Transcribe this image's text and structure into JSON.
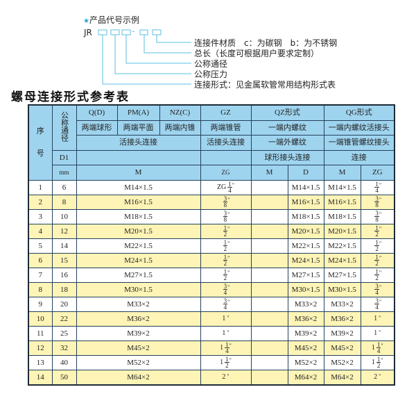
{
  "example": {
    "star_icon": "star-icon",
    "heading": "产品代号示例",
    "prefix": "JR",
    "dash": "-",
    "labels": [
      "连接件材质　c：为碳钢　b：为不锈钢",
      "总长（长度可根据用户要求定制）",
      "公称通径",
      "公称压力",
      "连接形式：见金属软管常用结构形式表"
    ],
    "line_color": "#5bbfe0"
  },
  "title": "螺母连接形式参考表",
  "colors": {
    "header": "#9fd4ef",
    "row_alt": "#fdf4b6",
    "border": "#24415c"
  },
  "header": {
    "seq_a": "序",
    "seq_b": "号",
    "dn": "公称通径",
    "r1": [
      "Q(D)",
      "PM(A)",
      "NZ(C)",
      "GZ",
      "QZ形式",
      "QG形式"
    ],
    "r2": [
      "两端球形",
      "两端平面",
      "两端内锥",
      "两端锥管",
      "一端内螺纹",
      "一端内螺纹活接头"
    ],
    "r3": [
      "活接头连接",
      "活接头连接",
      "一端外螺纹",
      "一端锥管螺纹接头"
    ],
    "r4": [
      "D1",
      "球形接头连接",
      "连接"
    ],
    "r5": [
      "mm",
      "M",
      "ZG",
      "M",
      "D",
      "M",
      "ZG"
    ]
  },
  "rows": [
    {
      "no": "1",
      "d1": "6",
      "m": "M14×1.5",
      "zg": {
        "w": "ZG",
        "n": "1",
        "d": "4",
        "mk": "\""
      },
      "qz_m": "",
      "qz_d": "M14×1.5",
      "qg_m": "M14×1.5",
      "qg_zg": {
        "w": "",
        "n": "1",
        "d": "4",
        "mk": "\""
      }
    },
    {
      "no": "2",
      "d1": "8",
      "m": "M16×1.5",
      "zg": {
        "w": "",
        "n": "3",
        "d": "8",
        "mk": "\""
      },
      "qz_m": "",
      "qz_d": "M16×1.5",
      "qg_m": "M16×1.5",
      "qg_zg": {
        "w": "",
        "n": "3",
        "d": "8",
        "mk": "\""
      }
    },
    {
      "no": "3",
      "d1": "10",
      "m": "M18×1.5",
      "zg": {
        "w": "",
        "n": "3",
        "d": "8",
        "mk": "\""
      },
      "qz_m": "",
      "qz_d": "M18×1.5",
      "qg_m": "M18×1.5",
      "qg_zg": {
        "w": "",
        "n": "3",
        "d": "8",
        "mk": "\""
      }
    },
    {
      "no": "4",
      "d1": "12",
      "m": "M20×1.5",
      "zg": {
        "w": "",
        "n": "1",
        "d": "2",
        "mk": "\""
      },
      "qz_m": "",
      "qz_d": "M20×1.5",
      "qg_m": "M20×1.5",
      "qg_zg": {
        "w": "",
        "n": "1",
        "d": "2",
        "mk": "\""
      }
    },
    {
      "no": "5",
      "d1": "14",
      "m": "M22×1.5",
      "zg": {
        "w": "",
        "n": "1",
        "d": "2",
        "mk": "\""
      },
      "qz_m": "",
      "qz_d": "M22×1.5",
      "qg_m": "M22×1.5",
      "qg_zg": {
        "w": "",
        "n": "1",
        "d": "2",
        "mk": "\""
      }
    },
    {
      "no": "6",
      "d1": "15",
      "m": "M24×1.5",
      "zg": {
        "w": "",
        "n": "1",
        "d": "2",
        "mk": "\""
      },
      "qz_m": "",
      "qz_d": "M24×1.5",
      "qg_m": "M24×1.5",
      "qg_zg": {
        "w": "",
        "n": "1",
        "d": "2",
        "mk": "\""
      }
    },
    {
      "no": "7",
      "d1": "16",
      "m": "M27×1.5",
      "zg": {
        "w": "",
        "n": "1",
        "d": "2",
        "mk": "\""
      },
      "qz_m": "",
      "qz_d": "M27×1.5",
      "qg_m": "M27×1.5",
      "qg_zg": {
        "w": "",
        "n": "1",
        "d": "2",
        "mk": "\""
      }
    },
    {
      "no": "8",
      "d1": "18",
      "m": "M30×1.5",
      "zg": {
        "w": "",
        "n": "3",
        "d": "4",
        "mk": "\""
      },
      "qz_m": "",
      "qz_d": "M30×1.5",
      "qg_m": "M30×1.5",
      "qg_zg": {
        "w": "",
        "n": "3",
        "d": "4",
        "mk": "\""
      }
    },
    {
      "no": "9",
      "d1": "20",
      "m": "M33×2",
      "zg": {
        "w": "",
        "n": "3",
        "d": "4",
        "mk": "\""
      },
      "qz_m": "",
      "qz_d": "M33×2",
      "qg_m": "M33×2",
      "qg_zg": {
        "w": "",
        "n": "3",
        "d": "4",
        "mk": "\""
      }
    },
    {
      "no": "10",
      "d1": "22",
      "m": "M36×2",
      "zg": {
        "w": "1",
        "n": "",
        "d": "",
        "mk": "\""
      },
      "qz_m": "",
      "qz_d": "M36×2",
      "qg_m": "M36×2",
      "qg_zg": {
        "w": "1",
        "n": "",
        "d": "",
        "mk": "\""
      }
    },
    {
      "no": "11",
      "d1": "25",
      "m": "M39×2",
      "zg": {
        "w": "1",
        "n": "",
        "d": "",
        "mk": "\""
      },
      "qz_m": "",
      "qz_d": "M39×2",
      "qg_m": "M39×2",
      "qg_zg": {
        "w": "1",
        "n": "",
        "d": "",
        "mk": "\""
      }
    },
    {
      "no": "12",
      "d1": "32",
      "m": "M45×2",
      "zg": {
        "w": "1",
        "n": "1",
        "d": "4",
        "mk": "\""
      },
      "qz_m": "",
      "qz_d": "M45×2",
      "qg_m": "M45×2",
      "qg_zg": {
        "w": "1",
        "n": "1",
        "d": "4",
        "mk": "\""
      }
    },
    {
      "no": "13",
      "d1": "40",
      "m": "M52×2",
      "zg": {
        "w": "1",
        "n": "1",
        "d": "2",
        "mk": "\""
      },
      "qz_m": "",
      "qz_d": "M52×2",
      "qg_m": "M52×2",
      "qg_zg": {
        "w": "1",
        "n": "1",
        "d": "2",
        "mk": "\""
      }
    },
    {
      "no": "14",
      "d1": "50",
      "m": "M64×2",
      "zg": {
        "w": "2",
        "n": "",
        "d": "",
        "mk": "\""
      },
      "qz_m": "",
      "qz_d": "M64×2",
      "qg_m": "M64×2",
      "qg_zg": {
        "w": "2",
        "n": "",
        "d": "",
        "mk": "\""
      }
    }
  ]
}
